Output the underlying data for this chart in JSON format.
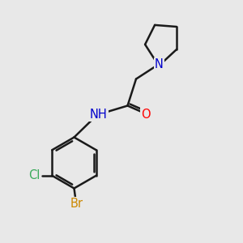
{
  "bg_color": "#e8e8e8",
  "bond_color": "#1a1a1a",
  "bond_width": 1.8,
  "atom_colors": {
    "N": "#0000cc",
    "O": "#ff0000",
    "Cl": "#3aaa5a",
    "Br": "#cc8800",
    "H": "#1a1a1a",
    "C": "#1a1a1a"
  },
  "font_size": 10.5
}
